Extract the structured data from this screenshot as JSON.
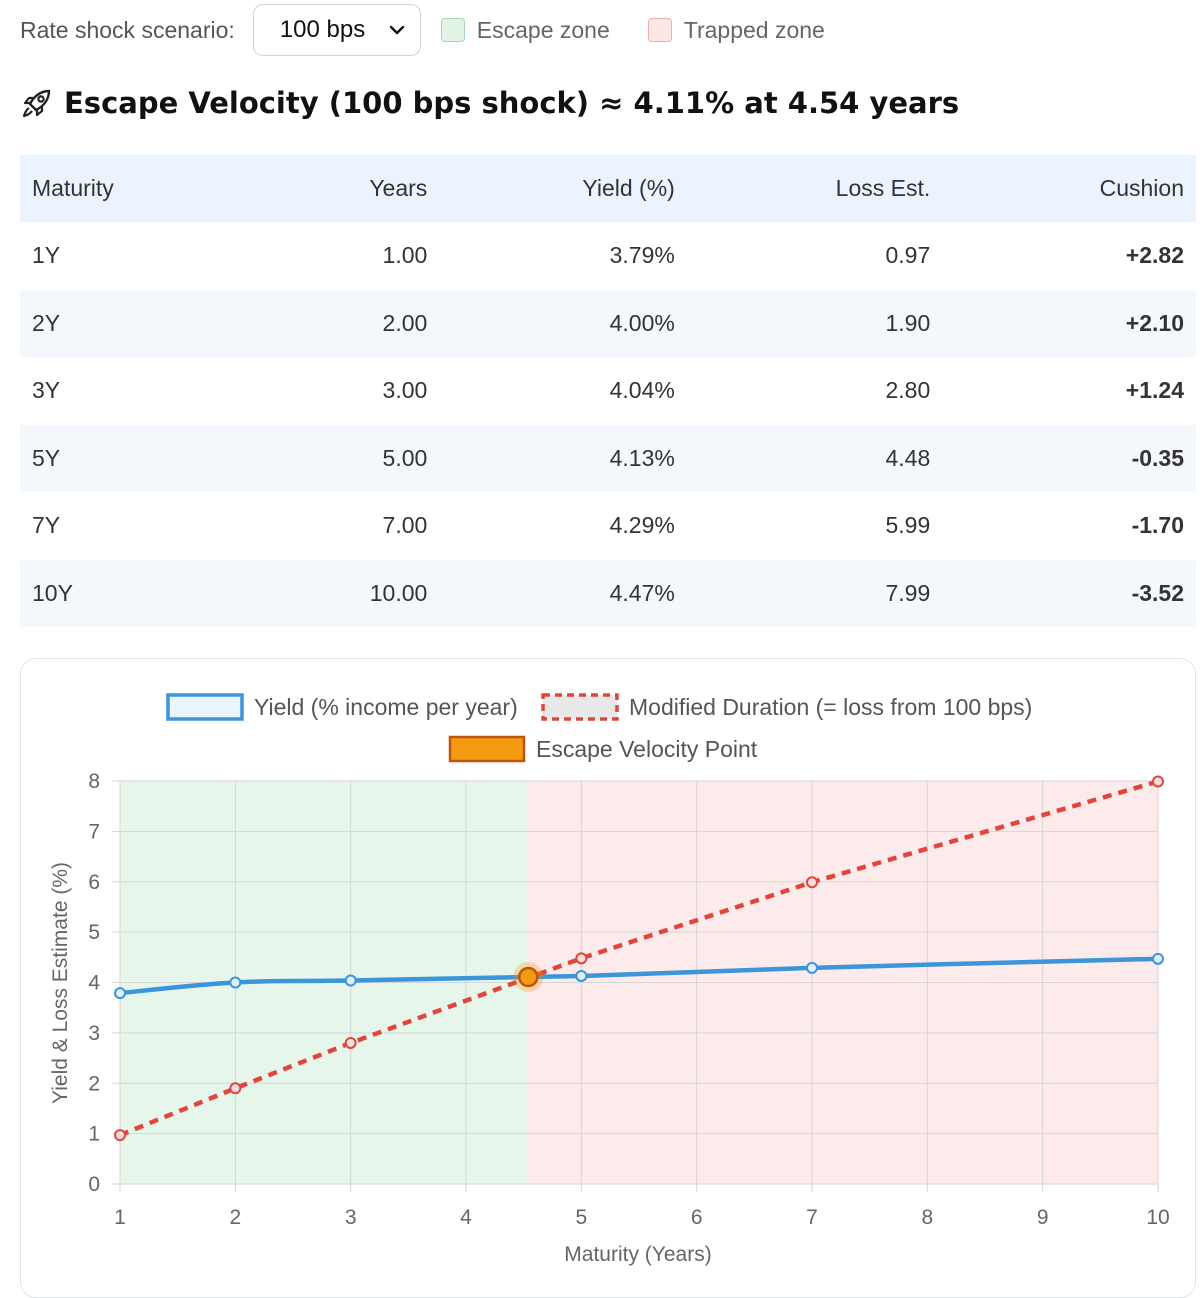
{
  "controls": {
    "scenario_label": "Rate shock scenario:",
    "scenario_value": "100 bps",
    "escape_zone_label": "Escape zone",
    "trapped_zone_label": "Trapped zone"
  },
  "headline": "Escape Velocity (100 bps shock) ≈ 4.11% at 4.54 years",
  "table": {
    "headers": [
      "Maturity",
      "Years",
      "Yield (%)",
      "Loss Est.",
      "Cushion"
    ],
    "rows": [
      {
        "maturity": "1Y",
        "years": "1.00",
        "yield": "3.79%",
        "loss": "0.97",
        "cushion": "+2.82"
      },
      {
        "maturity": "2Y",
        "years": "2.00",
        "yield": "4.00%",
        "loss": "1.90",
        "cushion": "+2.10"
      },
      {
        "maturity": "3Y",
        "years": "3.00",
        "yield": "4.04%",
        "loss": "2.80",
        "cushion": "+1.24"
      },
      {
        "maturity": "5Y",
        "years": "5.00",
        "yield": "4.13%",
        "loss": "4.48",
        "cushion": "-0.35"
      },
      {
        "maturity": "7Y",
        "years": "7.00",
        "yield": "4.29%",
        "loss": "5.99",
        "cushion": "-1.70"
      },
      {
        "maturity": "10Y",
        "years": "10.00",
        "yield": "4.47%",
        "loss": "7.99",
        "cushion": "-3.52"
      }
    ]
  },
  "colors": {
    "positive": "#27a046",
    "negative": "#d63c3c",
    "yield_line": "#3a95da",
    "duration_line": "#e0463c",
    "escape_point": "#f39c12",
    "escape_zone": "#e3f4e6",
    "trapped_zone": "#fde6e6"
  },
  "chart_data": {
    "type": "line",
    "xlabel": "Maturity (Years)",
    "ylabel": "Yield & Loss Estimate (%)",
    "xlim": [
      1,
      10
    ],
    "ylim": [
      0,
      8
    ],
    "x_ticks": [
      1,
      2,
      3,
      4,
      5,
      6,
      7,
      8,
      9,
      10
    ],
    "y_ticks": [
      0,
      1,
      2,
      3,
      4,
      5,
      6,
      7,
      8
    ],
    "grid": true,
    "legend_position": "top",
    "series": [
      {
        "name": "Yield (% income per year)",
        "style": "solid",
        "x": [
          1,
          2,
          3,
          5,
          7,
          10
        ],
        "y": [
          3.79,
          4.0,
          4.04,
          4.13,
          4.29,
          4.47
        ]
      },
      {
        "name": "Modified Duration (= loss from 100 bps)",
        "style": "dashed",
        "x": [
          1,
          2,
          3,
          5,
          7,
          10
        ],
        "y": [
          0.97,
          1.9,
          2.8,
          4.48,
          5.99,
          7.99
        ]
      },
      {
        "name": "Escape Velocity Point",
        "style": "point",
        "x": [
          4.54
        ],
        "y": [
          4.11
        ]
      }
    ],
    "zones": [
      {
        "name": "Escape zone",
        "from": 1,
        "to": 4.54
      },
      {
        "name": "Trapped zone",
        "from": 4.54,
        "to": 10
      }
    ]
  }
}
